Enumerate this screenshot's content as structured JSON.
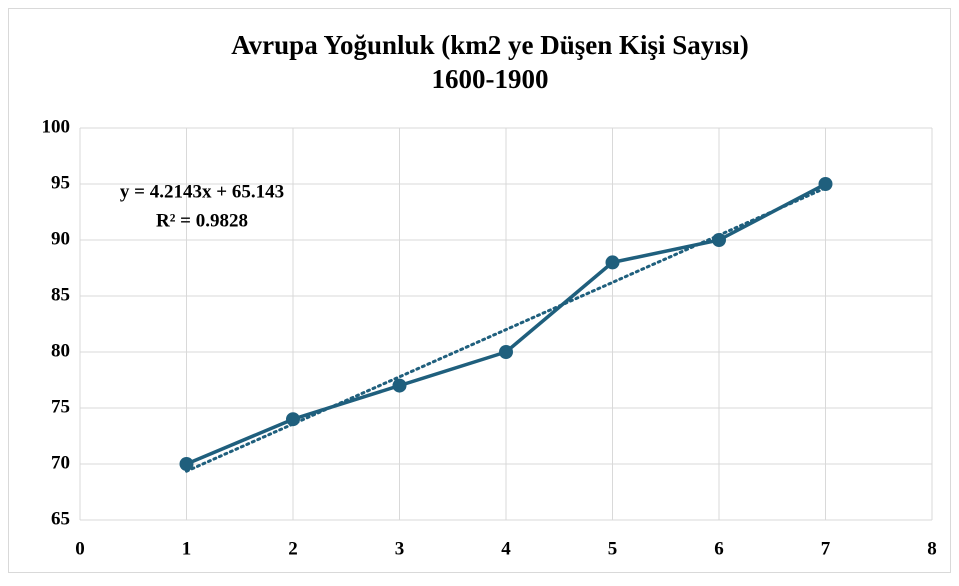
{
  "chart_data": {
    "type": "line",
    "title": "Avrupa Yoğunluk (km2 ye Düşen Kişi Sayısı)",
    "subtitle": "1600-1900",
    "x": [
      1,
      2,
      3,
      4,
      5,
      6,
      7
    ],
    "series": [
      {
        "name": "Avrupa Yoğunluk",
        "color": "#1f5f7d",
        "values": [
          70,
          74,
          77,
          80,
          88,
          90,
          95
        ]
      }
    ],
    "xlim": [
      0,
      8
    ],
    "xticks": [
      0,
      1,
      2,
      3,
      4,
      5,
      6,
      7,
      8
    ],
    "ylim": [
      65,
      100
    ],
    "yticks": [
      65,
      70,
      75,
      80,
      85,
      90,
      95,
      100
    ],
    "grid": true,
    "trendline": {
      "slope": 4.2143,
      "intercept": 65.143,
      "equation": "y = 4.2143x + 65.143",
      "r2_label": "R² = 0.9828"
    }
  }
}
